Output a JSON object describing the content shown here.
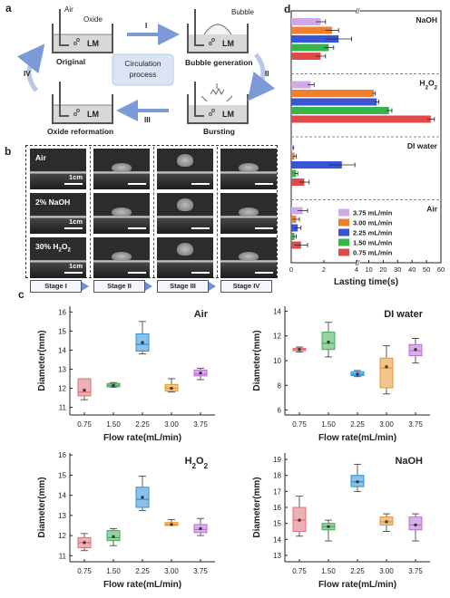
{
  "panel_a": {
    "label": "a",
    "original": "Original",
    "bubble_generation": "Bubble generation",
    "bursting": "Bursting",
    "oxide_reformation": "Oxide reformation",
    "center": [
      "Circulation",
      "process"
    ],
    "air": "Air",
    "oxide": "Oxide",
    "bubble": "Bubble",
    "lm": "LM",
    "steps": [
      "I",
      "II",
      "III",
      "IV"
    ]
  },
  "panel_b": {
    "label": "b",
    "rows": [
      "Air",
      "2% NaOH",
      "30% H2O2"
    ],
    "scale": "1cm",
    "stages": [
      "Stage I",
      "Stage II",
      "Stage III",
      "Stage IV"
    ]
  },
  "panel_c_label": "c",
  "panel_d_label": "d",
  "chart_data": [
    {
      "type": "bar",
      "orientation": "horizontal",
      "xlabel": "Lasting time(s)",
      "x_ticks": [
        "0",
        "2",
        "4",
        "10",
        "20",
        "30",
        "40",
        "50",
        "60"
      ],
      "axis_break": "after 4 (broken axis)",
      "groups": [
        "NaOH",
        "H2O2",
        "DI water",
        "Air"
      ],
      "series": [
        {
          "name": "3.75 mL/min",
          "color": "#d4a7e8",
          "values": [
            1.8,
            1.2,
            0.1,
            0.7
          ]
        },
        {
          "name": "3.00 mL/min",
          "color": "#f07f30",
          "values": [
            2.5,
            13.5,
            0.2,
            0.3
          ]
        },
        {
          "name": "2.25 mL/min",
          "color": "#3755d6",
          "values": [
            2.9,
            15.5,
            3.1,
            0.4
          ]
        },
        {
          "name": "1.50 mL/min",
          "color": "#36b54a",
          "values": [
            2.3,
            24,
            0.3,
            0.2
          ]
        },
        {
          "name": "0.75 mL/min",
          "color": "#e04a4a",
          "values": [
            1.8,
            53,
            0.8,
            0.6
          ]
        }
      ],
      "errors": [
        [
          0.3,
          0.2,
          0.05,
          0.3
        ],
        [
          0.4,
          1,
          0.1,
          0.2
        ],
        [
          0.8,
          1.5,
          0.8,
          0.2
        ],
        [
          0.3,
          2,
          0.1,
          0.1
        ],
        [
          0.3,
          2.5,
          0.3,
          0.4
        ]
      ]
    },
    {
      "type": "box",
      "title": "Air",
      "xlabel": "Flow rate(mL/min)",
      "ylabel": "Diameter(mm)",
      "categories": [
        "0.75",
        "1.50",
        "2.25",
        "3.00",
        "3.75"
      ],
      "ylim": [
        10.6,
        16.3
      ],
      "yticks": [
        11,
        12,
        13,
        14,
        15,
        16
      ],
      "colors": [
        "#e06d7a",
        "#3fae55",
        "#2f8fd6",
        "#e8962f",
        "#b86fd6"
      ],
      "boxes": [
        {
          "min": 11.4,
          "q1": 11.6,
          "med": 11.8,
          "mean": 11.9,
          "q3": 12.5,
          "max": 12.5
        },
        {
          "min": 12.05,
          "q1": 12.08,
          "med": 12.15,
          "mean": 12.15,
          "q3": 12.25,
          "max": 12.3
        },
        {
          "min": 13.8,
          "q1": 13.95,
          "med": 14.3,
          "mean": 14.4,
          "q3": 14.85,
          "max": 15.5
        },
        {
          "min": 11.8,
          "q1": 11.85,
          "med": 12.0,
          "mean": 12.0,
          "q3": 12.2,
          "max": 12.5
        },
        {
          "min": 12.45,
          "q1": 12.65,
          "med": 12.75,
          "mean": 12.8,
          "q3": 12.95,
          "max": 13.05
        }
      ]
    },
    {
      "type": "box",
      "title": "DI water",
      "xlabel": "Flow rate(mL/min)",
      "ylabel": "Diameter(mm)",
      "categories": [
        "0.75",
        "1.50",
        "2.25",
        "3.00",
        "3.75"
      ],
      "ylim": [
        5.6,
        14.4
      ],
      "yticks": [
        6,
        8,
        10,
        12,
        14
      ],
      "colors": [
        "#e06d7a",
        "#3fae55",
        "#2f8fd6",
        "#e8962f",
        "#b86fd6"
      ],
      "boxes": [
        {
          "min": 10.7,
          "q1": 10.8,
          "med": 10.9,
          "mean": 10.9,
          "q3": 11.0,
          "max": 11.1
        },
        {
          "min": 10.3,
          "q1": 10.9,
          "med": 11.4,
          "mean": 11.5,
          "q3": 12.3,
          "max": 13.1
        },
        {
          "min": 8.7,
          "q1": 8.8,
          "med": 8.9,
          "mean": 8.9,
          "q3": 9.1,
          "max": 9.2
        },
        {
          "min": 7.3,
          "q1": 7.8,
          "med": 9.4,
          "mean": 9.5,
          "q3": 10.2,
          "max": 11.2
        },
        {
          "min": 9.8,
          "q1": 10.4,
          "med": 10.8,
          "mean": 10.9,
          "q3": 11.3,
          "max": 11.8
        }
      ]
    },
    {
      "type": "box",
      "title": "H2O2",
      "xlabel": "Flow rate(mL/min)",
      "ylabel": "Diameter(mm)",
      "categories": [
        "0.75",
        "1.50",
        "2.25",
        "3.00",
        "3.75"
      ],
      "ylim": [
        10.7,
        16.1
      ],
      "yticks": [
        11,
        12,
        13,
        14,
        15,
        16
      ],
      "colors": [
        "#e06d7a",
        "#3fae55",
        "#2f8fd6",
        "#e8962f",
        "#b86fd6"
      ],
      "boxes": [
        {
          "min": 11.25,
          "q1": 11.4,
          "med": 11.65,
          "mean": 11.65,
          "q3": 11.9,
          "max": 12.1
        },
        {
          "min": 11.5,
          "q1": 11.75,
          "med": 11.9,
          "mean": 11.95,
          "q3": 12.25,
          "max": 12.35
        },
        {
          "min": 13.25,
          "q1": 13.4,
          "med": 13.8,
          "mean": 13.9,
          "q3": 14.4,
          "max": 14.95
        },
        {
          "min": 12.5,
          "q1": 12.5,
          "med": 12.55,
          "mean": 12.55,
          "q3": 12.65,
          "max": 12.8
        },
        {
          "min": 12.0,
          "q1": 12.15,
          "med": 12.3,
          "mean": 12.35,
          "q3": 12.55,
          "max": 12.85
        }
      ]
    },
    {
      "type": "box",
      "title": "NaOH",
      "xlabel": "Flow rate(mL/min)",
      "ylabel": "Diameter(mm)",
      "categories": [
        "0.75",
        "1.50",
        "2.25",
        "3.00",
        "3.75"
      ],
      "ylim": [
        12.6,
        19.4
      ],
      "yticks": [
        13,
        14,
        15,
        16,
        17,
        18,
        19
      ],
      "colors": [
        "#e06d7a",
        "#3fae55",
        "#2f8fd6",
        "#e8962f",
        "#b86fd6"
      ],
      "boxes": [
        {
          "min": 14.2,
          "q1": 14.5,
          "med": 15.2,
          "mean": 15.2,
          "q3": 16.0,
          "max": 16.7
        },
        {
          "min": 13.9,
          "q1": 14.6,
          "med": 14.8,
          "mean": 14.8,
          "q3": 15.0,
          "max": 15.2
        },
        {
          "min": 17.0,
          "q1": 17.3,
          "med": 17.6,
          "mean": 17.6,
          "q3": 18.0,
          "max": 18.7
        },
        {
          "min": 14.5,
          "q1": 14.9,
          "med": 15.1,
          "mean": 15.1,
          "q3": 15.4,
          "max": 15.6
        },
        {
          "min": 13.9,
          "q1": 14.6,
          "med": 14.9,
          "mean": 14.9,
          "q3": 15.4,
          "max": 15.6
        }
      ]
    }
  ]
}
